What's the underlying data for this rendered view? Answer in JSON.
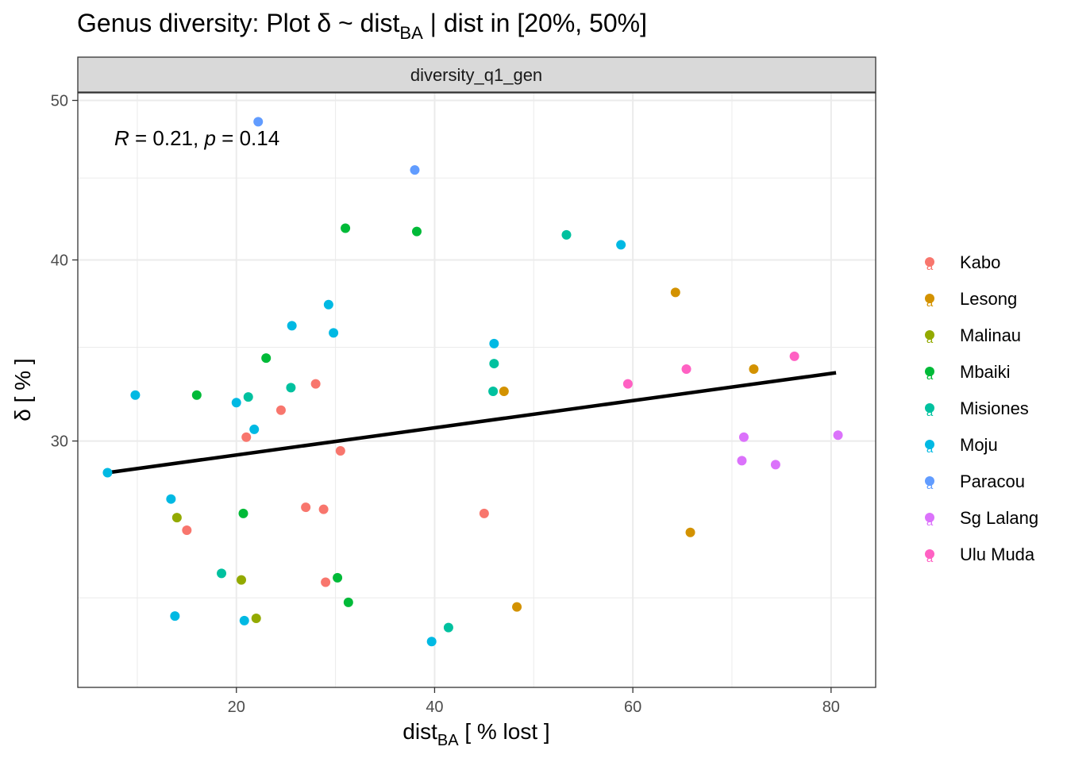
{
  "chart_data": {
    "type": "scatter",
    "title_main": "Genus diversity: Plot δ ~ dist",
    "title_sub": "BA",
    "title_tail": " | dist in [20%, 50%]",
    "facet_label": "diversity_q1_gen",
    "xlabel_main": "dist",
    "xlabel_sub": "BA",
    "xlabel_tail": " [ % lost ]",
    "ylabel": "δ [ % ]",
    "xlim": [
      4,
      84.5
    ],
    "ylim": [
      18.7,
      50.5
    ],
    "y_scale": "sqrt",
    "x_ticks": [
      20,
      40,
      60,
      80
    ],
    "y_ticks": [
      30,
      40,
      50
    ],
    "x_grid_minor": [
      10,
      30,
      50,
      70
    ],
    "y_grid_minor": [
      22.5,
      35,
      45
    ],
    "grid": true,
    "legend_position": "right",
    "annotation": {
      "r_label": "R",
      "r_text": " = 0.21, ",
      "p_label": "p",
      "p_text": " = 0.14"
    },
    "trend_line": {
      "x": [
        7,
        80.5
      ],
      "y": [
        28.4,
        33.6
      ]
    },
    "series": [
      {
        "name": "Kabo",
        "color": "#F8766D",
        "points": [
          {
            "x": 21.0,
            "y": 30.2
          },
          {
            "x": 24.5,
            "y": 31.6
          },
          {
            "x": 28.0,
            "y": 33.0
          },
          {
            "x": 30.5,
            "y": 29.5
          },
          {
            "x": 27.0,
            "y": 26.7
          },
          {
            "x": 28.8,
            "y": 26.6
          },
          {
            "x": 15.0,
            "y": 25.6
          },
          {
            "x": 29.0,
            "y": 23.2
          },
          {
            "x": 45.0,
            "y": 26.4
          }
        ]
      },
      {
        "name": "Lesong",
        "color": "#D39200",
        "points": [
          {
            "x": 64.3,
            "y": 38.1
          },
          {
            "x": 72.2,
            "y": 33.8
          },
          {
            "x": 47.0,
            "y": 32.6
          },
          {
            "x": 65.8,
            "y": 25.5
          },
          {
            "x": 48.3,
            "y": 22.1
          }
        ]
      },
      {
        "name": "Malinau",
        "color": "#93AA00",
        "points": [
          {
            "x": 14.0,
            "y": 26.2
          },
          {
            "x": 20.5,
            "y": 23.3
          },
          {
            "x": 22.0,
            "y": 21.6
          }
        ]
      },
      {
        "name": "Mbaiki",
        "color": "#00BA38",
        "points": [
          {
            "x": 31.0,
            "y": 41.9
          },
          {
            "x": 38.2,
            "y": 41.7
          },
          {
            "x": 23.0,
            "y": 34.4
          },
          {
            "x": 16.0,
            "y": 32.4
          },
          {
            "x": 20.7,
            "y": 26.4
          },
          {
            "x": 30.2,
            "y": 23.4
          },
          {
            "x": 31.3,
            "y": 22.3
          }
        ]
      },
      {
        "name": "Misiones",
        "color": "#00C19F",
        "points": [
          {
            "x": 53.3,
            "y": 41.5
          },
          {
            "x": 46.0,
            "y": 34.1
          },
          {
            "x": 25.5,
            "y": 32.8
          },
          {
            "x": 21.2,
            "y": 32.3
          },
          {
            "x": 45.9,
            "y": 32.6
          },
          {
            "x": 18.5,
            "y": 23.6
          },
          {
            "x": 41.4,
            "y": 21.2
          }
        ]
      },
      {
        "name": "Moju",
        "color": "#00B9E3",
        "points": [
          {
            "x": 58.8,
            "y": 40.9
          },
          {
            "x": 29.3,
            "y": 37.4
          },
          {
            "x": 25.6,
            "y": 36.2
          },
          {
            "x": 29.8,
            "y": 35.8
          },
          {
            "x": 46.0,
            "y": 35.2
          },
          {
            "x": 9.8,
            "y": 32.4
          },
          {
            "x": 20.0,
            "y": 32.0
          },
          {
            "x": 21.8,
            "y": 30.6
          },
          {
            "x": 7.0,
            "y": 28.4
          },
          {
            "x": 13.4,
            "y": 27.1
          },
          {
            "x": 13.8,
            "y": 21.7
          },
          {
            "x": 20.8,
            "y": 21.5
          },
          {
            "x": 39.7,
            "y": 20.6
          }
        ]
      },
      {
        "name": "Paracou",
        "color": "#619CFF",
        "points": [
          {
            "x": 22.2,
            "y": 48.6
          },
          {
            "x": 38.0,
            "y": 45.5
          }
        ]
      },
      {
        "name": "Sg Lalang",
        "color": "#DB72FB",
        "points": [
          {
            "x": 80.7,
            "y": 30.3
          },
          {
            "x": 71.2,
            "y": 30.2
          },
          {
            "x": 71.0,
            "y": 29.0
          },
          {
            "x": 74.4,
            "y": 28.8
          }
        ]
      },
      {
        "name": "Ulu Muda",
        "color": "#FF61C3",
        "points": [
          {
            "x": 76.3,
            "y": 34.5
          },
          {
            "x": 65.4,
            "y": 33.8
          },
          {
            "x": 59.5,
            "y": 33.0
          }
        ]
      }
    ]
  }
}
